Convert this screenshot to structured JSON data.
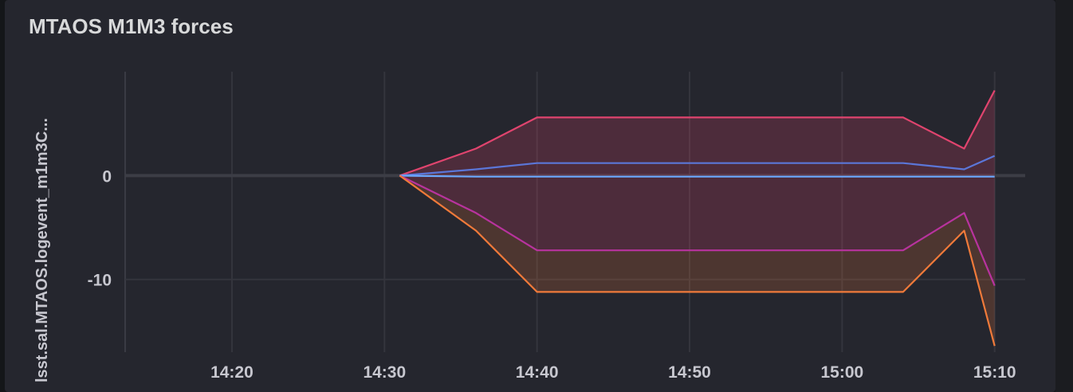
{
  "panel": {
    "title": "MTAOS M1M3 forces"
  },
  "chart_data": {
    "type": "area",
    "title": "MTAOS M1M3 forces",
    "ylabel": "lsst.sal.MTAOS.logevent_m1m3C...",
    "xlabel": "",
    "x_ticks": [
      "14:20",
      "14:30",
      "14:40",
      "14:50",
      "15:00",
      "15:10"
    ],
    "y_ticks": [
      "0",
      "-10"
    ],
    "x_range": [
      "14:13",
      "15:12"
    ],
    "ylim": [
      -17,
      10
    ],
    "grid": true,
    "legend": "none",
    "x": [
      "14:31",
      "14:36",
      "14:40",
      "15:04",
      "15:08",
      "15:10"
    ],
    "series": [
      {
        "color": "#e0446e",
        "values": [
          0,
          2.6,
          5.6,
          5.6,
          2.6,
          8.2
        ]
      },
      {
        "color": "#5b76d8",
        "values": [
          0,
          0.6,
          1.2,
          1.2,
          0.6,
          1.9
        ]
      },
      {
        "color": "#6aa9ff",
        "values": [
          0,
          -0.1,
          -0.1,
          -0.1,
          -0.1,
          -0.1
        ]
      },
      {
        "color": "#b8339e",
        "values": [
          0,
          -3.6,
          -7.2,
          -7.2,
          -3.6,
          -10.6
        ]
      },
      {
        "color": "#f07a3a",
        "values": [
          0,
          -5.3,
          -11.2,
          -11.2,
          -5.3,
          -16.4
        ]
      }
    ],
    "fill_colors": {
      "upper": "rgba(224, 68, 110, 0.22)",
      "lower": "rgba(240, 122, 58, 0.20)"
    }
  }
}
